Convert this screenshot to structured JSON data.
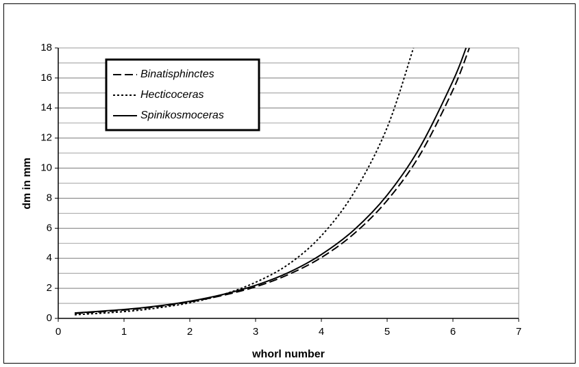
{
  "chart_data": {
    "type": "line",
    "xlabel": "whorl number",
    "ylabel": "dm in mm",
    "xlim": [
      0,
      7
    ],
    "xticks": [
      0,
      1,
      2,
      3,
      4,
      5,
      6,
      7
    ],
    "ylim": [
      0,
      18
    ],
    "yticks": [
      0,
      2,
      4,
      6,
      8,
      10,
      12,
      14,
      16,
      18
    ],
    "y_minor_grid": [
      1,
      3,
      5,
      7,
      9,
      11,
      13,
      15,
      17
    ],
    "grid": true,
    "legend": "upper left",
    "series": [
      {
        "name": "Binatisphinctes",
        "color": "#000000",
        "dash": "long-dash",
        "x": [
          0.25,
          1,
          1.5,
          2,
          2.5,
          3,
          3.5,
          4,
          4.5,
          5,
          5.5,
          6,
          6.25
        ],
        "values": [
          0.33,
          0.55,
          0.78,
          1.1,
          1.53,
          2.1,
          2.92,
          4.05,
          5.65,
          7.85,
          10.9,
          15.2,
          18
        ]
      },
      {
        "name": "Hecticoceras",
        "color": "#000000",
        "dash": "dotted",
        "x": [
          0.25,
          1,
          1.5,
          2,
          2.5,
          3,
          3.5,
          4,
          4.5,
          5,
          5.4
        ],
        "values": [
          0.24,
          0.45,
          0.69,
          1.04,
          1.58,
          2.4,
          3.6,
          5.5,
          8.4,
          12.7,
          18
        ]
      },
      {
        "name": "Spinikosmoceras",
        "color": "#000000",
        "dash": "solid",
        "x": [
          0.25,
          1,
          1.5,
          2,
          2.5,
          3,
          3.5,
          4,
          4.5,
          5,
          5.5,
          6,
          6.2
        ],
        "values": [
          0.36,
          0.59,
          0.82,
          1.14,
          1.59,
          2.2,
          3.05,
          4.25,
          5.9,
          8.2,
          11.4,
          15.8,
          18
        ]
      }
    ]
  }
}
